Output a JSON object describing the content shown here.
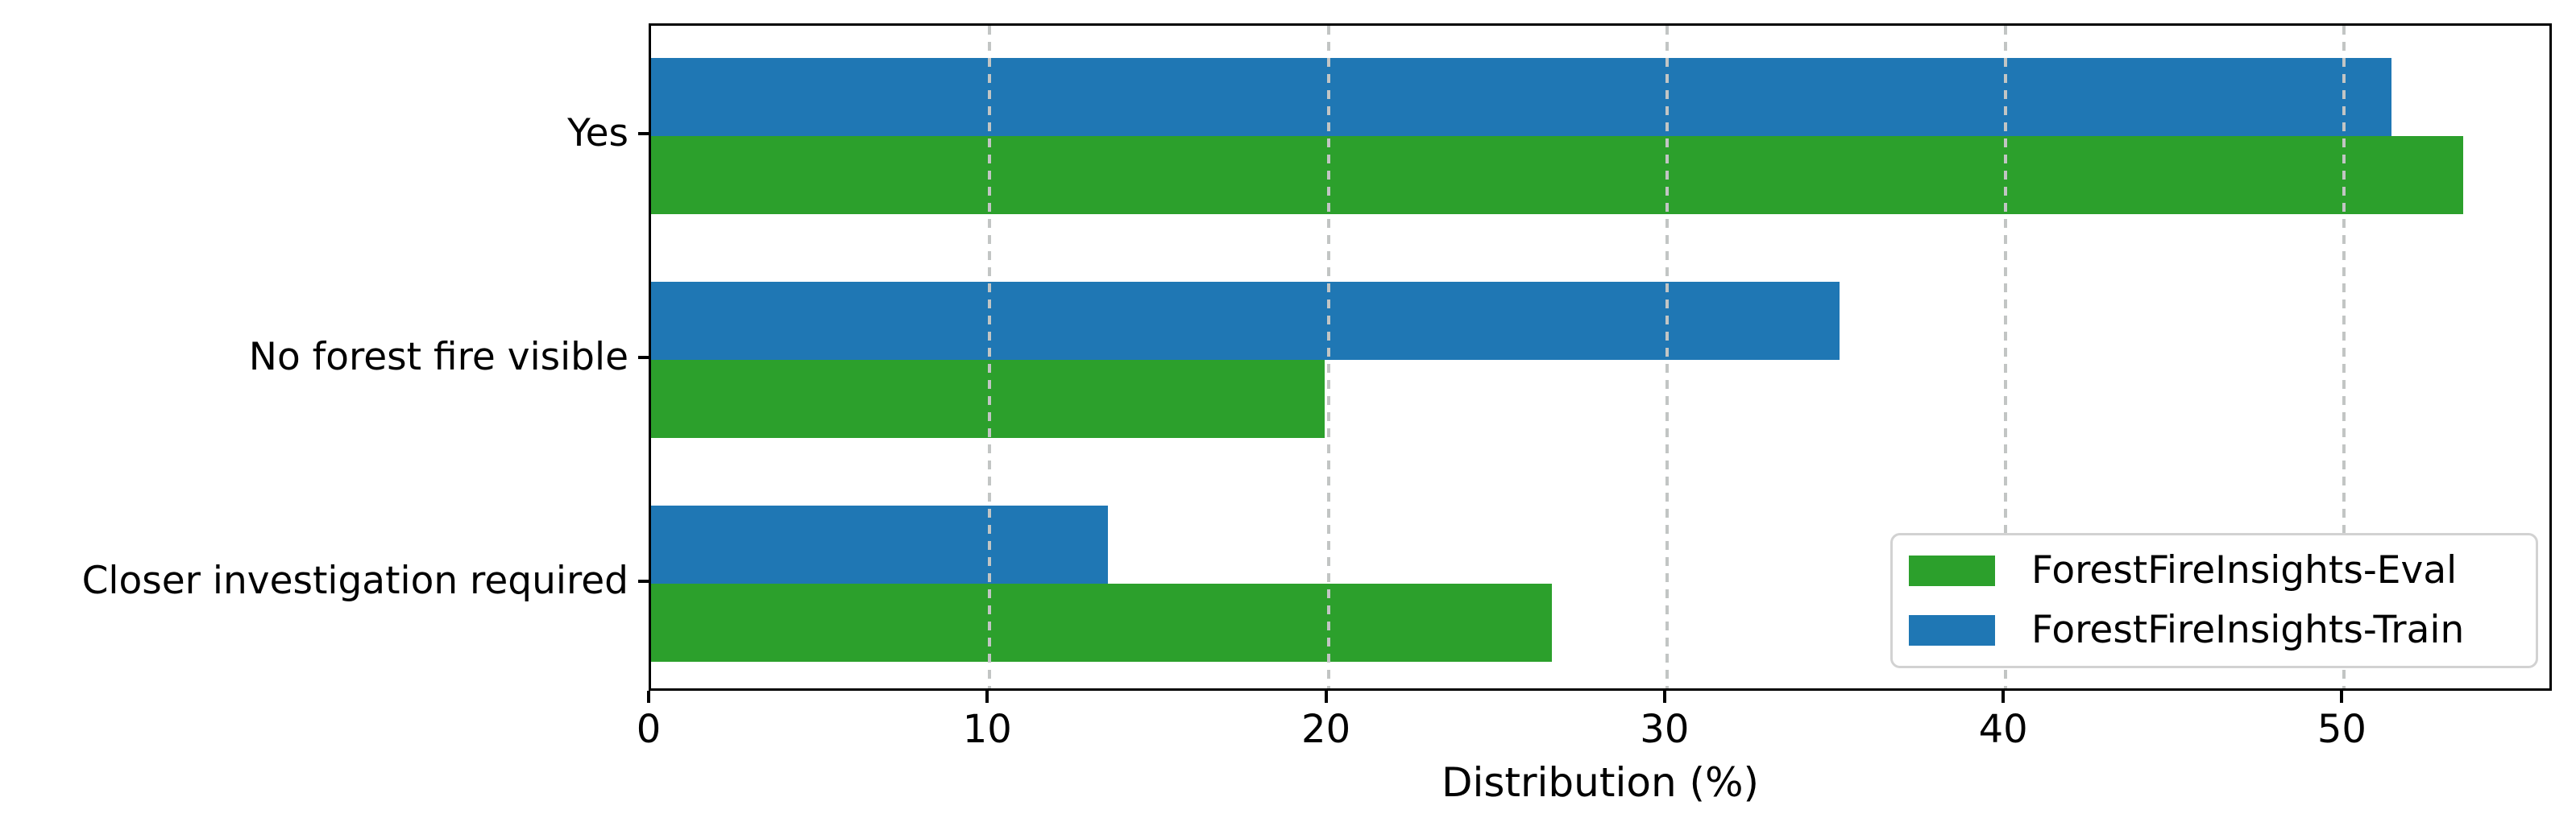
{
  "chart_data": {
    "type": "bar",
    "orientation": "horizontal",
    "title": "",
    "xlabel": "Distribution (%)",
    "ylabel": "",
    "categories": [
      "Yes",
      "No forest fire visible",
      "Closer investigation required"
    ],
    "series": [
      {
        "name": "ForestFireInsights-Eval",
        "color": "#2ca02c",
        "values": [
          53.5,
          19.9,
          26.6
        ]
      },
      {
        "name": "ForestFireInsights-Train",
        "color": "#1f77b4",
        "values": [
          51.4,
          35.1,
          13.5
        ]
      }
    ],
    "bar_order_top_to_bottom_within_group": [
      "ForestFireInsights-Train",
      "ForestFireInsights-Eval"
    ],
    "x_ticks": [
      0,
      10,
      20,
      30,
      40,
      50
    ],
    "x_tick_labels": [
      "0",
      "10",
      "20",
      "30",
      "40",
      "50"
    ],
    "xlim": [
      0,
      56.2
    ],
    "grid": {
      "axis": "x",
      "style": "dashed",
      "color": "#c2c5c4",
      "drawn_on_top_of_bars": true
    },
    "legend": {
      "position": "lower right",
      "entries": [
        {
          "label": "ForestFireInsights-Eval",
          "color": "#2ca02c"
        },
        {
          "label": "ForestFireInsights-Train",
          "color": "#1f77b4"
        }
      ]
    }
  }
}
